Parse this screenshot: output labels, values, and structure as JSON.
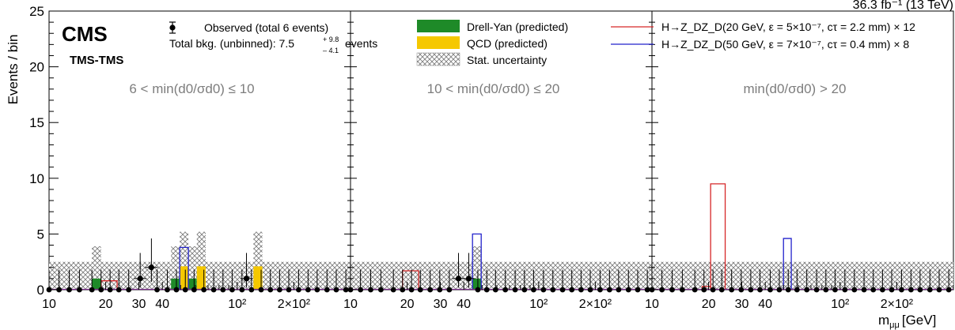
{
  "chart_data": {
    "type": "bar",
    "y_axis_label": "Events / bin",
    "x_axis_label": "m",
    "x_axis_label_sub": "μμ",
    "x_axis_unit": "[GeV]",
    "ylim": [
      0,
      25
    ],
    "y_ticks": [
      "0",
      "5",
      "10",
      "15",
      "20",
      "25"
    ],
    "x_scale": "log",
    "xlim": [
      10,
      400
    ],
    "lumi_text": "36.3 fb⁻¹ (13 TeV)",
    "experiment": "CMS",
    "category": "TMS-TMS",
    "legend": {
      "observed": "Observed (total 6 events)",
      "total_bkg_prefix": "Total bkg. (unbinned): 7.5",
      "total_bkg_up": "+ 9.8",
      "total_bkg_down": "– 4.1",
      "total_bkg_suffix": "events",
      "dy": "Drell-Yan (predicted)",
      "qcd": "QCD (predicted)",
      "stat": "Stat. uncertainty",
      "sig1": "H→Z_DZ_D(20 GeV, ε = 5×10⁻⁷, cτ = 2.2 mm) × 12",
      "sig2": "H→Z_DZ_D(50 GeV, ε = 7×10⁻⁷, cτ = 0.4 mm) × 8"
    },
    "colors": {
      "dy": "#1e8a28",
      "qcd": "#f5c800",
      "sig1": "#d62728",
      "sig2": "#2222cc",
      "unc": "#888888"
    },
    "panels": [
      {
        "label": "6 < min(d0/σd0) ≤ 10",
        "bins": [
          {
            "lo": 16.9,
            "hi": 18.9,
            "dy": 1.0,
            "qcd": 0,
            "unc": 3.9
          },
          {
            "lo": 44.5,
            "hi": 49.5,
            "dy": 1.0,
            "qcd": 0,
            "unc": 3.9
          },
          {
            "lo": 49.5,
            "hi": 55.0,
            "dy": 0,
            "qcd": 2.1,
            "unc": 5.2
          },
          {
            "lo": 55.0,
            "hi": 61.0,
            "dy": 1.0,
            "qcd": 0,
            "unc": 3.9
          },
          {
            "lo": 61.0,
            "hi": 68.0,
            "dy": 0,
            "qcd": 2.1,
            "unc": 5.2
          },
          {
            "lo": 122,
            "hi": 136,
            "dy": 0,
            "qcd": 2.1,
            "unc": 5.2
          }
        ],
        "sig1": [
          {
            "lo": 18.9,
            "hi": 23.0,
            "y": 0.8
          }
        ],
        "sig2": [
          {
            "lo": 49.5,
            "hi": 55.0,
            "y": 3.8
          }
        ],
        "obs": [
          {
            "x": 30.5,
            "y": 1,
            "err_lo": 0.8,
            "err_hi": 2.3
          },
          {
            "x": 35.0,
            "y": 2,
            "err_lo": 1.3,
            "err_hi": 2.6
          },
          {
            "x": 112,
            "y": 1,
            "err_lo": 0.8,
            "err_hi": 2.3
          }
        ]
      },
      {
        "label": "10 < min(d0/σd0) ≤ 20",
        "bins": [
          {
            "lo": 44.5,
            "hi": 49.5,
            "dy": 1.0,
            "qcd": 0,
            "unc": 3.9
          }
        ],
        "sig1": [
          {
            "lo": 18.9,
            "hi": 23.0,
            "y": 1.7
          }
        ],
        "sig2": [
          {
            "lo": 44.5,
            "hi": 49.5,
            "y": 5.0
          }
        ],
        "obs": [
          {
            "x": 37.5,
            "y": 1,
            "err_lo": 0.8,
            "err_hi": 2.3
          },
          {
            "x": 42.5,
            "y": 1,
            "err_lo": 0.8,
            "err_hi": 2.3
          }
        ]
      },
      {
        "label": "min(d0/σd0) > 20",
        "bins": [],
        "sig1": [
          {
            "lo": 18.5,
            "hi": 20.5,
            "y": 0.3
          },
          {
            "lo": 20.5,
            "hi": 24.5,
            "y": 9.5
          }
        ],
        "sig2": [
          {
            "lo": 50,
            "hi": 55,
            "y": 4.6
          }
        ],
        "obs": []
      }
    ],
    "flat_uncertainty": 2.5,
    "zero_points_x": [
      10,
      11.3,
      12.8,
      14.5,
      16.9,
      18.9,
      21.1,
      23.5,
      26.5,
      29.8,
      33.5,
      37.5,
      42.5,
      47.5,
      53.0,
      59.0,
      66.5,
      75.0,
      84.0,
      94.0,
      106,
      119,
      134,
      150,
      168,
      188,
      212,
      238,
      266,
      300,
      336,
      378
    ]
  }
}
